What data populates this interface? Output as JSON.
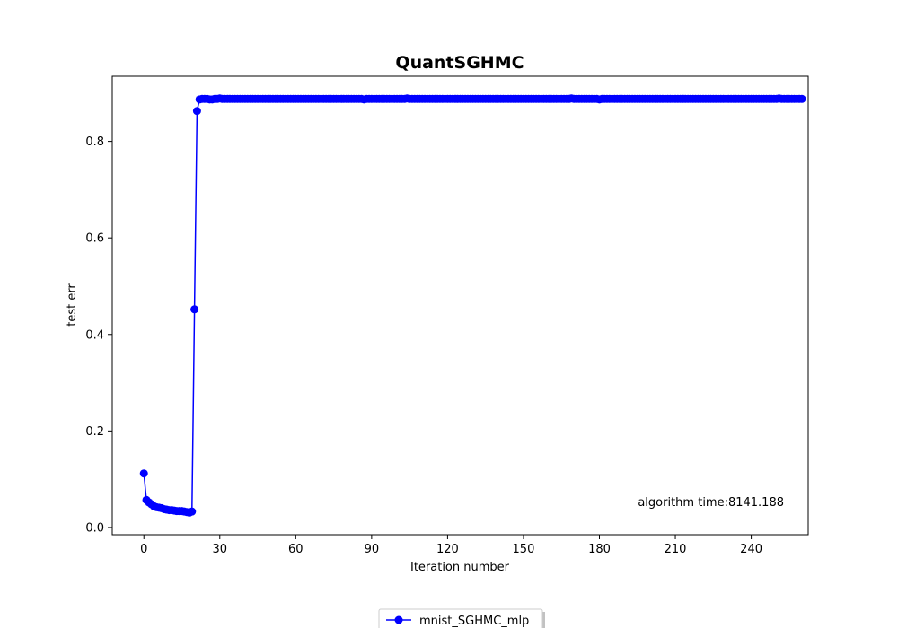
{
  "chart_data": {
    "type": "line",
    "title": "QuantSGHMC",
    "xlabel": "Iteration number",
    "ylabel": "test err",
    "xlim": [
      -12.5,
      262.5
    ],
    "ylim": [
      -0.015,
      0.935
    ],
    "xticks": [
      0,
      30,
      60,
      90,
      120,
      150,
      180,
      210,
      240
    ],
    "yticks": [
      0.0,
      0.2,
      0.4,
      0.6,
      0.8
    ],
    "ytick_labels": [
      "0.0",
      "0.2",
      "0.4",
      "0.6",
      "0.8"
    ],
    "grid": false,
    "legend_position": "bottom-center",
    "annotation": "algorithm time:8141.188",
    "series": [
      {
        "name": "mnist_SGHMC_mlp",
        "color": "#0000ff",
        "marker": "circle",
        "x_start": 0,
        "x_step": 1,
        "values": [
          0.112,
          0.057,
          0.052,
          0.048,
          0.044,
          0.042,
          0.041,
          0.04,
          0.038,
          0.037,
          0.036,
          0.036,
          0.035,
          0.034,
          0.034,
          0.034,
          0.033,
          0.032,
          0.031,
          0.033,
          0.452,
          0.863,
          0.887,
          0.888,
          0.888,
          0.888,
          0.887,
          0.887,
          0.888,
          0.888,
          0.889,
          0.888,
          0.888,
          0.888,
          0.888,
          0.888,
          0.888,
          0.888,
          0.888,
          0.888,
          0.888,
          0.888,
          0.888,
          0.888,
          0.888,
          0.888,
          0.888,
          0.888,
          0.888,
          0.888,
          0.888,
          0.888,
          0.888,
          0.888,
          0.888,
          0.888,
          0.888,
          0.888,
          0.888,
          0.888,
          0.888,
          0.888,
          0.888,
          0.888,
          0.888,
          0.888,
          0.888,
          0.888,
          0.888,
          0.888,
          0.888,
          0.888,
          0.888,
          0.888,
          0.888,
          0.888,
          0.888,
          0.888,
          0.888,
          0.888,
          0.888,
          0.888,
          0.888,
          0.888,
          0.888,
          0.888,
          0.888,
          0.887,
          0.888,
          0.888,
          0.888,
          0.888,
          0.888,
          0.888,
          0.888,
          0.888,
          0.888,
          0.888,
          0.888,
          0.888,
          0.888,
          0.888,
          0.888,
          0.888,
          0.889,
          0.888,
          0.888,
          0.888,
          0.888,
          0.888,
          0.888,
          0.888,
          0.888,
          0.888,
          0.888,
          0.888,
          0.888,
          0.888,
          0.888,
          0.888,
          0.888,
          0.888,
          0.888,
          0.888,
          0.888,
          0.888,
          0.888,
          0.888,
          0.888,
          0.888,
          0.888,
          0.888,
          0.888,
          0.888,
          0.888,
          0.888,
          0.888,
          0.888,
          0.888,
          0.888,
          0.888,
          0.888,
          0.888,
          0.888,
          0.888,
          0.888,
          0.888,
          0.888,
          0.888,
          0.888,
          0.888,
          0.888,
          0.888,
          0.888,
          0.888,
          0.888,
          0.888,
          0.888,
          0.888,
          0.888,
          0.888,
          0.888,
          0.888,
          0.888,
          0.888,
          0.888,
          0.888,
          0.888,
          0.888,
          0.889,
          0.888,
          0.888,
          0.888,
          0.888,
          0.888,
          0.888,
          0.888,
          0.888,
          0.888,
          0.888,
          0.887,
          0.888,
          0.888,
          0.888,
          0.888,
          0.888,
          0.888,
          0.888,
          0.888,
          0.888,
          0.888,
          0.888,
          0.888,
          0.888,
          0.888,
          0.888,
          0.888,
          0.888,
          0.888,
          0.888,
          0.888,
          0.888,
          0.888,
          0.888,
          0.888,
          0.888,
          0.888,
          0.888,
          0.888,
          0.888,
          0.888,
          0.888,
          0.888,
          0.888,
          0.888,
          0.888,
          0.888,
          0.888,
          0.888,
          0.888,
          0.888,
          0.888,
          0.888,
          0.888,
          0.888,
          0.888,
          0.888,
          0.888,
          0.888,
          0.888,
          0.888,
          0.888,
          0.888,
          0.888,
          0.888,
          0.888,
          0.888,
          0.888,
          0.888,
          0.888,
          0.888,
          0.888,
          0.888,
          0.888,
          0.888,
          0.888,
          0.888,
          0.888,
          0.888,
          0.888,
          0.888,
          0.889,
          0.888,
          0.888,
          0.888,
          0.888,
          0.888,
          0.888,
          0.888,
          0.888,
          0.888
        ]
      }
    ]
  }
}
